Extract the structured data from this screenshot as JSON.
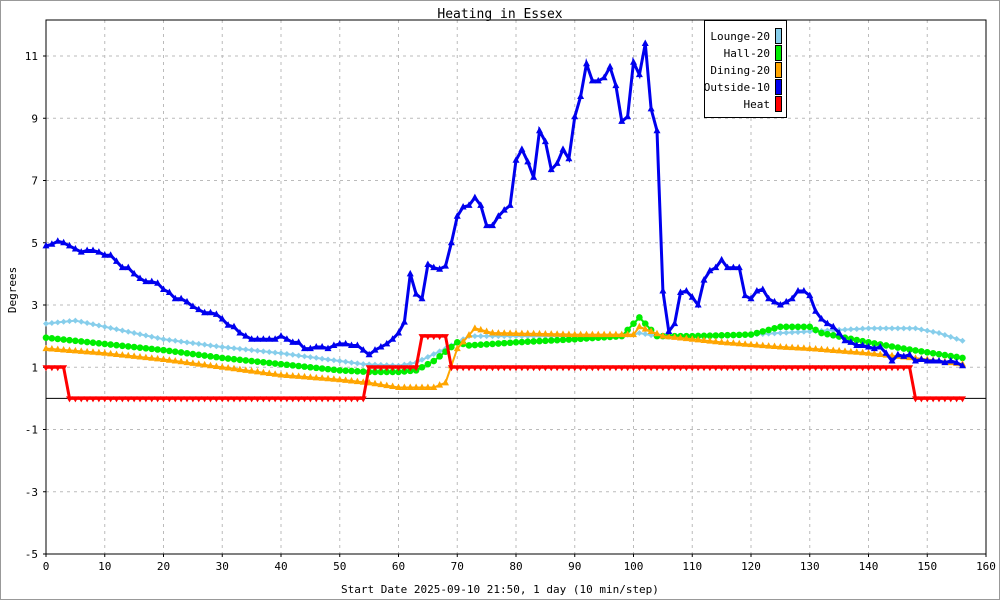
{
  "chart_data": {
    "type": "line",
    "title": "Heating in Essex",
    "xlabel": "Start Date 2025-09-10 21:50, 1 day (10 min/step)",
    "ylabel": "Degrees",
    "xlim": [
      0,
      160
    ],
    "ylim": [
      -5,
      12
    ],
    "xticks": [
      0,
      10,
      20,
      30,
      40,
      50,
      60,
      70,
      80,
      90,
      100,
      110,
      120,
      130,
      140,
      150,
      160
    ],
    "yticks": [
      -5,
      -3,
      -1,
      1,
      3,
      5,
      7,
      9,
      11
    ],
    "grid": true,
    "legend_position": "top-right",
    "series": [
      {
        "name": "Lounge-20",
        "color": "#87ceeb",
        "marker": "diamond",
        "x": [
          0,
          5,
          10,
          20,
          30,
          40,
          50,
          54,
          60,
          63,
          68,
          72,
          80,
          90,
          100,
          101,
          104,
          110,
          120,
          130,
          140,
          148,
          152,
          156
        ],
        "y": [
          2.4,
          2.5,
          2.3,
          1.9,
          1.65,
          1.45,
          1.2,
          1.1,
          1.05,
          1.15,
          1.6,
          2.0,
          2.0,
          2.0,
          2.05,
          2.1,
          2.0,
          2.0,
          2.05,
          2.15,
          2.25,
          2.25,
          2.1,
          1.85
        ]
      },
      {
        "name": "Hall-20",
        "color": "#00ee00",
        "marker": "circle",
        "x": [
          0,
          5,
          10,
          20,
          30,
          40,
          50,
          55,
          60,
          63,
          66,
          70,
          72,
          80,
          90,
          98,
          101,
          104,
          110,
          120,
          125,
          130,
          132,
          140,
          146,
          156
        ],
        "y": [
          1.95,
          1.85,
          1.75,
          1.55,
          1.3,
          1.1,
          0.9,
          0.85,
          0.85,
          0.9,
          1.2,
          1.8,
          1.7,
          1.8,
          1.9,
          2.0,
          2.6,
          2.0,
          2.0,
          2.05,
          2.3,
          2.3,
          2.1,
          1.8,
          1.6,
          1.3
        ]
      },
      {
        "name": "Dining-20",
        "color": "#ffa500",
        "marker": "triangle",
        "x": [
          0,
          10,
          20,
          30,
          40,
          50,
          55,
          60,
          66,
          68,
          70,
          73,
          76,
          90,
          100,
          101,
          105,
          115,
          125,
          130,
          140,
          150,
          156
        ],
        "y": [
          1.6,
          1.45,
          1.25,
          1.0,
          0.75,
          0.6,
          0.5,
          0.35,
          0.35,
          0.5,
          1.6,
          2.25,
          2.1,
          2.05,
          2.05,
          2.3,
          2.0,
          1.8,
          1.65,
          1.6,
          1.45,
          1.25,
          1.1
        ]
      },
      {
        "name": "Outside-10",
        "color": "#0000ee",
        "marker": "triangle",
        "y": [
          4.9,
          4.95,
          5.05,
          5.0,
          4.9,
          4.8,
          4.7,
          4.75,
          4.75,
          4.7,
          4.6,
          4.6,
          4.4,
          4.2,
          4.2,
          4.0,
          3.85,
          3.75,
          3.75,
          3.7,
          3.5,
          3.4,
          3.2,
          3.2,
          3.1,
          2.95,
          2.85,
          2.75,
          2.75,
          2.7,
          2.55,
          2.35,
          2.3,
          2.1,
          2.0,
          1.9,
          1.9,
          1.9,
          1.9,
          1.9,
          2.0,
          1.9,
          1.8,
          1.8,
          1.6,
          1.6,
          1.65,
          1.65,
          1.6,
          1.7,
          1.75,
          1.75,
          1.7,
          1.7,
          1.55,
          1.4,
          1.55,
          1.65,
          1.75,
          1.9,
          2.1,
          2.45,
          4.0,
          3.35,
          3.2,
          4.3,
          4.2,
          4.15,
          4.25,
          5.0,
          5.85,
          6.15,
          6.2,
          6.45,
          6.2,
          5.55,
          5.55,
          5.85,
          6.05,
          6.2,
          7.65,
          8.0,
          7.6,
          7.1,
          8.6,
          8.25,
          7.35,
          7.55,
          8.0,
          7.7,
          9.05,
          9.7,
          10.75,
          10.2,
          10.2,
          10.3,
          10.65,
          10.05,
          8.9,
          9.05,
          10.8,
          10.4,
          11.4,
          9.3,
          8.6,
          3.45,
          2.15,
          2.4,
          3.4,
          3.45,
          3.25,
          3.0,
          3.8,
          4.1,
          4.2,
          4.45,
          4.2,
          4.2,
          4.2,
          3.3,
          3.2,
          3.45,
          3.5,
          3.2,
          3.1,
          3.0,
          3.1,
          3.2,
          3.45,
          3.45,
          3.3,
          2.8,
          2.55,
          2.4,
          2.3,
          2.1,
          1.85,
          1.8,
          1.7,
          1.7,
          1.65,
          1.6,
          1.65,
          1.45,
          1.2,
          1.4,
          1.35,
          1.4,
          1.2,
          1.25,
          1.2,
          1.2,
          1.2,
          1.15,
          1.2,
          1.15,
          1.05
        ]
      },
      {
        "name": "Heat",
        "color": "#ff0000",
        "marker": "triangle-down",
        "x": [
          0,
          3,
          4,
          54,
          55,
          63,
          64,
          68,
          69,
          147,
          148,
          156
        ],
        "y": [
          1,
          1,
          0,
          0,
          1,
          1,
          2,
          2,
          1,
          1,
          0,
          0
        ]
      }
    ]
  }
}
